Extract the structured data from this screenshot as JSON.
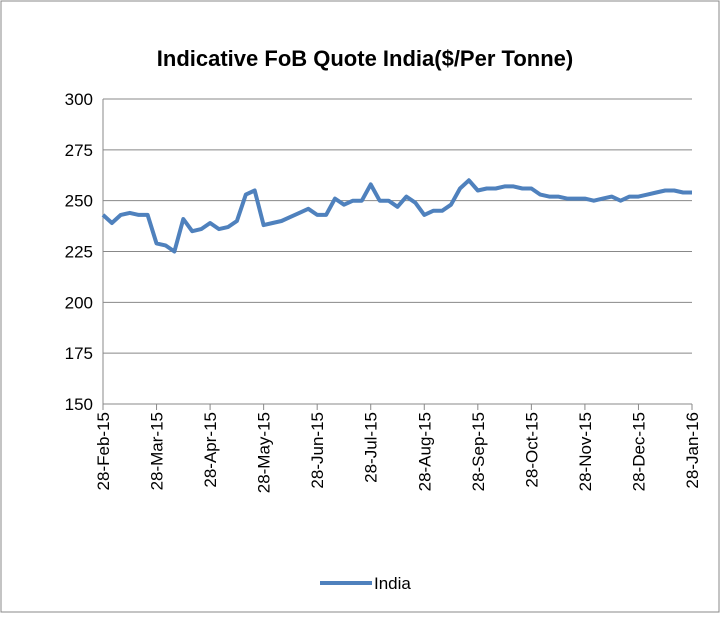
{
  "chart_data": {
    "type": "line",
    "title": "Indicative FoB Quote India($/Per Tonne)",
    "categories": [
      "28-Feb-15",
      null,
      null,
      null,
      null,
      null,
      "28-Mar-15",
      null,
      null,
      null,
      null,
      null,
      "28-Apr-15",
      null,
      null,
      null,
      null,
      null,
      "28-May-15",
      null,
      null,
      null,
      null,
      null,
      "28-Jun-15",
      null,
      null,
      null,
      null,
      null,
      "28-Jul-15",
      null,
      null,
      null,
      null,
      null,
      "28-Aug-15",
      null,
      null,
      null,
      null,
      null,
      "28-Sep-15",
      null,
      null,
      null,
      null,
      null,
      "28-Oct-15",
      null,
      null,
      null,
      null,
      null,
      "28-Nov-15",
      null,
      null,
      null,
      null,
      null,
      "28-Dec-15",
      null,
      null,
      null,
      null,
      null,
      "28-Jan-16"
    ],
    "series": [
      {
        "name": "India",
        "color": "#4f81bd",
        "values": [
          243,
          239,
          243,
          244,
          243,
          243,
          229,
          228,
          225,
          241,
          235,
          236,
          239,
          236,
          237,
          240,
          253,
          255,
          238,
          239,
          240,
          242,
          244,
          246,
          243,
          243,
          251,
          248,
          250,
          250,
          258,
          250,
          250,
          247,
          252,
          249,
          243,
          245,
          245,
          248,
          256,
          260,
          255,
          256,
          256,
          257,
          257,
          256,
          256,
          253,
          252,
          252,
          251,
          251,
          251,
          250,
          251,
          252,
          250,
          252,
          252,
          253,
          254,
          255,
          255,
          254,
          254
        ]
      }
    ],
    "ylim": [
      150,
      300
    ],
    "yticks": [
      150,
      175,
      200,
      225,
      250,
      275,
      300
    ],
    "grid": true,
    "legend": "bottom"
  }
}
